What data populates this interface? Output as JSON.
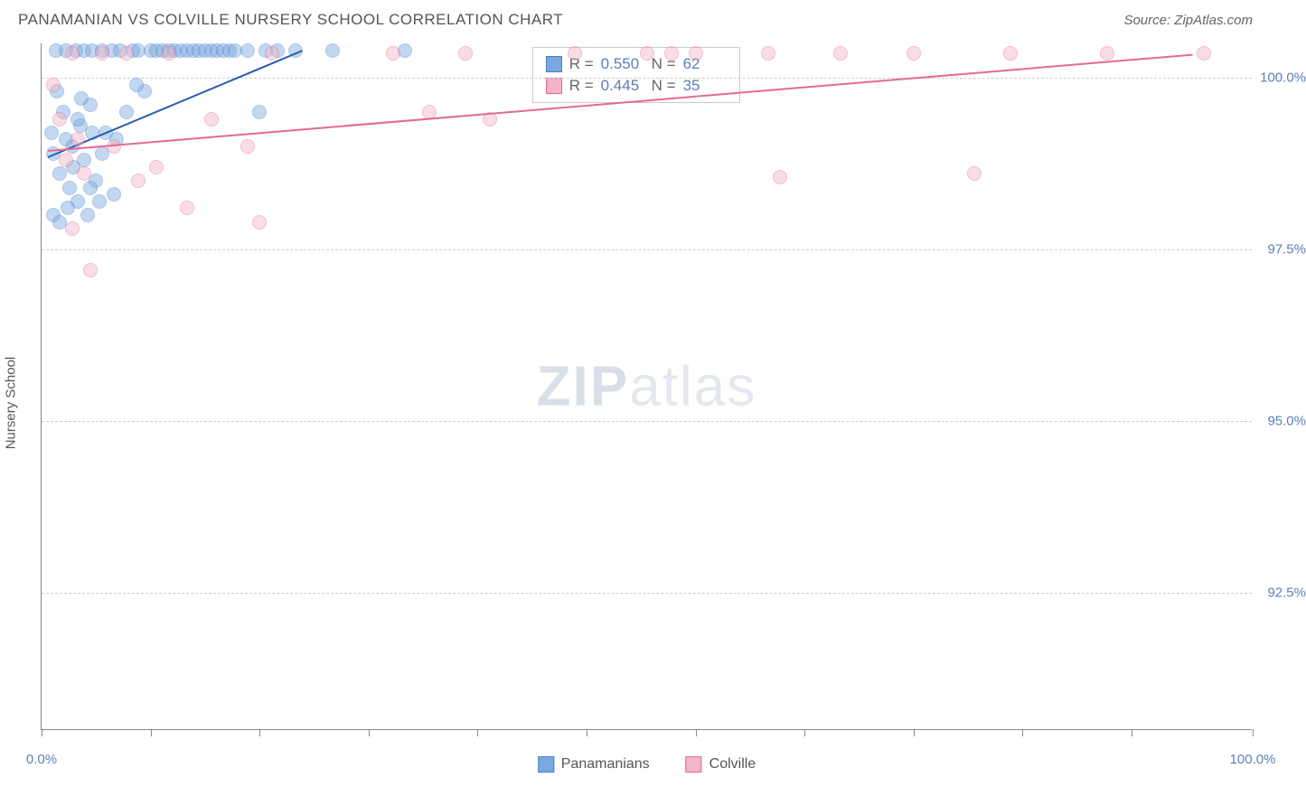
{
  "title": "PANAMANIAN VS COLVILLE NURSERY SCHOOL CORRELATION CHART",
  "source": "Source: ZipAtlas.com",
  "watermark_bold": "ZIP",
  "watermark_light": "atlas",
  "chart": {
    "type": "scatter",
    "ylabel": "Nursery School",
    "xlim": [
      0,
      100
    ],
    "ylim": [
      90.5,
      100.5
    ],
    "xtick_positions": [
      0,
      9,
      18,
      27,
      36,
      45,
      54,
      63,
      72,
      81,
      90,
      100
    ],
    "xtick_labels_shown": {
      "0": "0.0%",
      "100": "100.0%"
    },
    "ytick_positions": [
      92.5,
      95.0,
      97.5,
      100.0
    ],
    "ytick_labels": [
      "92.5%",
      "95.0%",
      "97.5%",
      "100.0%"
    ],
    "grid_color": "#cccccc",
    "axis_color": "#888888",
    "background_color": "#ffffff",
    "label_fontsize": 15,
    "label_color": "#5b7fb8",
    "marker_radius": 8,
    "marker_opacity": 0.45,
    "series": [
      {
        "name": "Panamanians",
        "marker_color": "#7aa8e0",
        "marker_border": "#4a7fc9",
        "line_color": "#2a5db0",
        "R": "0.550",
        "N": "62",
        "trend": {
          "x1": 0.5,
          "y1": 98.85,
          "x2": 21.5,
          "y2": 100.4
        },
        "points": [
          [
            0.8,
            99.2
          ],
          [
            1.2,
            100.4
          ],
          [
            1.5,
            98.6
          ],
          [
            1.8,
            99.5
          ],
          [
            2.0,
            100.4
          ],
          [
            2.3,
            98.4
          ],
          [
            2.5,
            99.0
          ],
          [
            2.8,
            100.4
          ],
          [
            3.0,
            98.2
          ],
          [
            3.2,
            99.3
          ],
          [
            3.5,
            100.4
          ],
          [
            3.8,
            98.0
          ],
          [
            4.0,
            99.6
          ],
          [
            4.2,
            100.4
          ],
          [
            4.5,
            98.5
          ],
          [
            5.0,
            100.4
          ],
          [
            5.3,
            99.2
          ],
          [
            5.8,
            100.4
          ],
          [
            6.0,
            98.3
          ],
          [
            6.5,
            100.4
          ],
          [
            7.0,
            99.5
          ],
          [
            7.5,
            100.4
          ],
          [
            8.0,
            100.4
          ],
          [
            8.5,
            99.8
          ],
          [
            9.0,
            100.4
          ],
          [
            9.5,
            100.4
          ],
          [
            10.0,
            100.4
          ],
          [
            10.5,
            100.4
          ],
          [
            11.0,
            100.4
          ],
          [
            11.5,
            100.4
          ],
          [
            12.0,
            100.4
          ],
          [
            12.5,
            100.4
          ],
          [
            13.0,
            100.4
          ],
          [
            13.5,
            100.4
          ],
          [
            14.0,
            100.4
          ],
          [
            14.5,
            100.4
          ],
          [
            15.0,
            100.4
          ],
          [
            15.5,
            100.4
          ],
          [
            16.0,
            100.4
          ],
          [
            17.0,
            100.4
          ],
          [
            18.0,
            99.5
          ],
          [
            18.5,
            100.4
          ],
          [
            19.5,
            100.4
          ],
          [
            21.0,
            100.4
          ],
          [
            24.0,
            100.4
          ],
          [
            30.0,
            100.4
          ],
          [
            1.0,
            98.0
          ],
          [
            1.5,
            97.9
          ],
          [
            2.2,
            98.1
          ],
          [
            3.0,
            99.4
          ],
          [
            3.5,
            98.8
          ],
          [
            4.0,
            98.4
          ],
          [
            4.8,
            98.2
          ],
          [
            1.3,
            99.8
          ],
          [
            2.0,
            99.1
          ],
          [
            2.6,
            98.7
          ],
          [
            3.3,
            99.7
          ],
          [
            4.2,
            99.2
          ],
          [
            5.0,
            98.9
          ],
          [
            6.2,
            99.1
          ],
          [
            7.8,
            99.9
          ],
          [
            1.0,
            98.9
          ]
        ]
      },
      {
        "name": "Colville",
        "marker_color": "#f3b5c8",
        "marker_border": "#e26a95",
        "line_color": "#e26a95",
        "R": "0.445",
        "N": "35",
        "trend": {
          "x1": 0.5,
          "y1": 98.95,
          "x2": 95.0,
          "y2": 100.35
        },
        "points": [
          [
            1.0,
            99.9
          ],
          [
            1.5,
            99.4
          ],
          [
            2.0,
            98.8
          ],
          [
            2.5,
            100.35
          ],
          [
            3.0,
            99.1
          ],
          [
            3.5,
            98.6
          ],
          [
            4.0,
            97.2
          ],
          [
            5.0,
            100.35
          ],
          [
            6.0,
            99.0
          ],
          [
            7.0,
            100.35
          ],
          [
            8.0,
            98.5
          ],
          [
            9.5,
            98.7
          ],
          [
            10.5,
            100.35
          ],
          [
            12.0,
            98.1
          ],
          [
            14.0,
            99.4
          ],
          [
            17.0,
            99.0
          ],
          [
            18.0,
            97.9
          ],
          [
            19.0,
            100.35
          ],
          [
            29.0,
            100.35
          ],
          [
            32.0,
            99.5
          ],
          [
            35.0,
            100.35
          ],
          [
            37.0,
            99.4
          ],
          [
            44.0,
            100.35
          ],
          [
            50.0,
            100.35
          ],
          [
            52.0,
            100.35
          ],
          [
            54.0,
            100.35
          ],
          [
            60.0,
            100.35
          ],
          [
            61.0,
            98.55
          ],
          [
            66.0,
            100.35
          ],
          [
            72.0,
            100.35
          ],
          [
            77.0,
            98.6
          ],
          [
            80.0,
            100.35
          ],
          [
            88.0,
            100.35
          ],
          [
            96.0,
            100.35
          ],
          [
            2.5,
            97.8
          ]
        ]
      }
    ],
    "legend_box": {
      "left_pct": 40.5,
      "top_y": 100.45
    },
    "bottom_legend": [
      "Panamanians",
      "Colville"
    ]
  }
}
